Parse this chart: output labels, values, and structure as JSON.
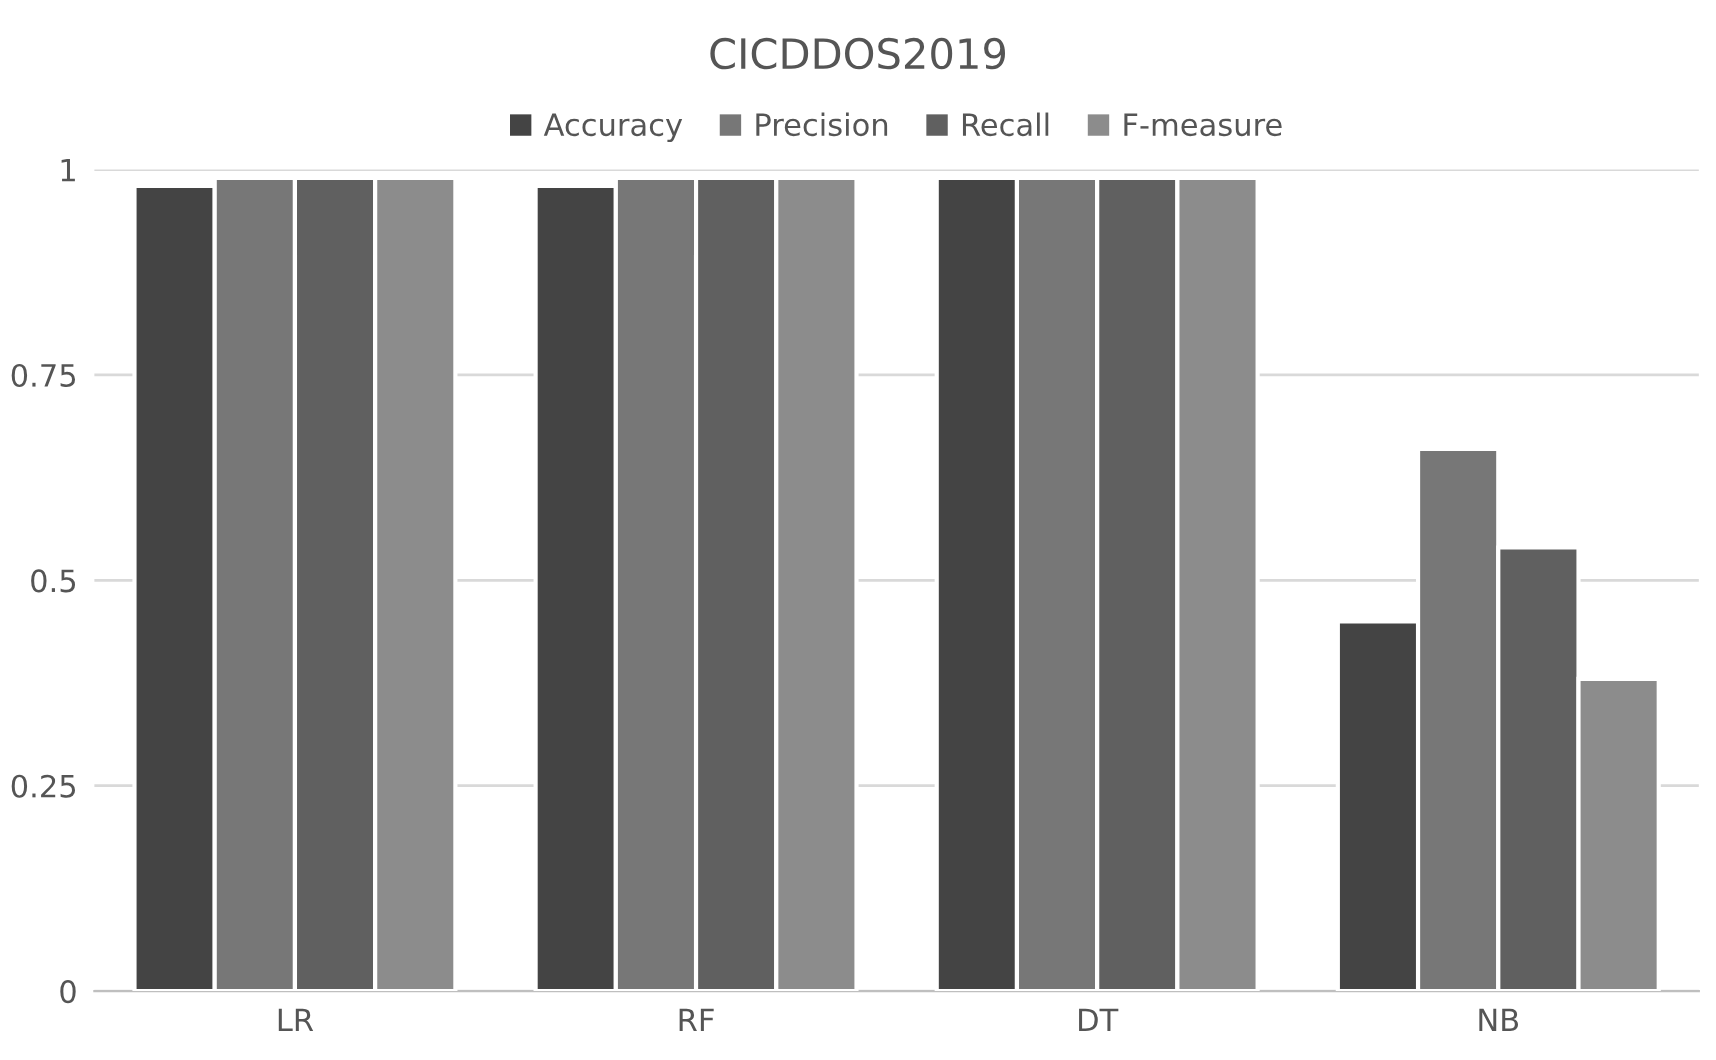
{
  "chart_data": {
    "type": "bar",
    "title": "CICDDOS2019",
    "categories": [
      "LR",
      "RF",
      "DT",
      "NB"
    ],
    "series": [
      {
        "name": "Accuracy",
        "color": "#444444",
        "values": [
          0.98,
          0.98,
          0.99,
          0.45
        ]
      },
      {
        "name": "Precision",
        "color": "#777777",
        "values": [
          0.99,
          0.99,
          0.99,
          0.66
        ]
      },
      {
        "name": "Recall",
        "color": "#606060",
        "values": [
          0.99,
          0.99,
          0.99,
          0.54
        ]
      },
      {
        "name": "F-measure",
        "color": "#8c8c8c",
        "values": [
          0.99,
          0.99,
          0.99,
          0.38
        ]
      }
    ],
    "ylim": [
      0,
      1
    ],
    "yticks": [
      0,
      0.25,
      0.5,
      0.75,
      1
    ],
    "grid": "y",
    "legend": "top"
  }
}
